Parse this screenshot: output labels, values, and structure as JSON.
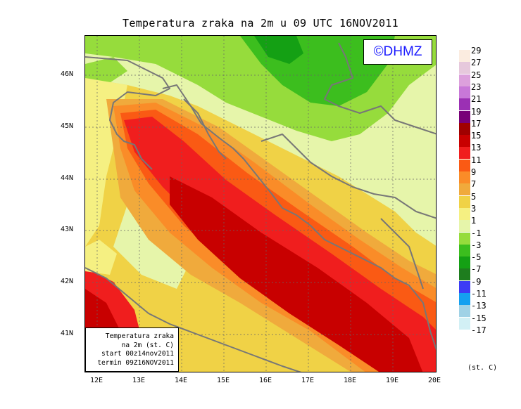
{
  "title": "Temperatura zraka na 2m u 09 UTC 16NOV2011",
  "copyright": "©DHMZ",
  "info_box": {
    "line1": "Temperatura zraka",
    "line2": "na 2m (st. C)",
    "line3": "start 00z14nov2011",
    "line4": "termin 09Z16NOV2011"
  },
  "y_ticks": [
    "46N",
    "45N",
    "44N",
    "43N",
    "42N",
    "41N"
  ],
  "x_ticks": [
    "12E",
    "13E",
    "14E",
    "15E",
    "16E",
    "17E",
    "18E",
    "19E",
    "20E"
  ],
  "legend": {
    "unit": "(st. C)",
    "levels": [
      {
        "label": "29",
        "color": "#fbece0"
      },
      {
        "label": "27",
        "color": "#e6c8dc"
      },
      {
        "label": "25",
        "color": "#dca0dc"
      },
      {
        "label": "23",
        "color": "#c878d8"
      },
      {
        "label": "21",
        "color": "#9b30b4"
      },
      {
        "label": "19",
        "color": "#780078"
      },
      {
        "label": "17",
        "color": "#a00000"
      },
      {
        "label": "15",
        "color": "#c80000"
      },
      {
        "label": "13",
        "color": "#f01e1e"
      },
      {
        "label": "11",
        "color": "#fa5a14"
      },
      {
        "label": "9",
        "color": "#fa8c28"
      },
      {
        "label": "7",
        "color": "#f0aa3c"
      },
      {
        "label": "5",
        "color": "#f0d246"
      },
      {
        "label": "3",
        "color": "#f5f082"
      },
      {
        "label": "1",
        "color": "#e6f5aa"
      },
      {
        "label": "-1",
        "color": "#96dc3c"
      },
      {
        "label": "-3",
        "color": "#3cbe1e"
      },
      {
        "label": "-5",
        "color": "#14a014"
      },
      {
        "label": "-7",
        "color": "#1e7d1e"
      },
      {
        "label": "-9",
        "color": "#3c3cf5"
      },
      {
        "label": "-11",
        "color": "#14a0f0"
      },
      {
        "label": "-13",
        "color": "#a0d2e6"
      },
      {
        "label": "-15",
        "color": "#d2f0f5"
      },
      {
        "label": "-17",
        "color": "#ffffff"
      }
    ]
  }
}
